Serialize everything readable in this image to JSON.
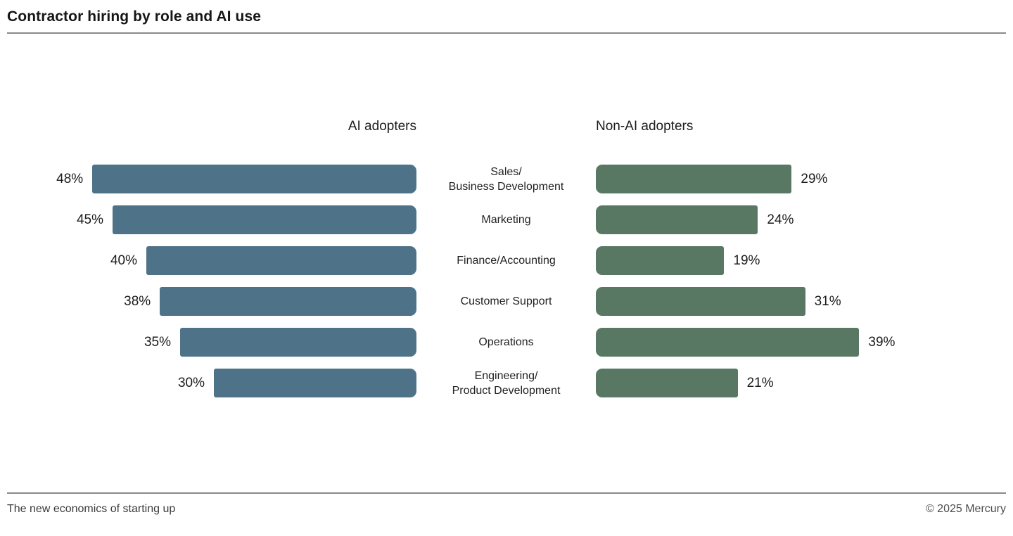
{
  "page": {
    "title": "Contractor hiring by role and AI use",
    "footer": {
      "caption": "The new economics of starting up",
      "copyright": "© 2025 Mercury"
    }
  },
  "chart_data": {
    "type": "bar",
    "variant": "diverging-horizontal",
    "title": "Contractor hiring by role and AI use",
    "unit": "%",
    "categories": [
      "Sales/\nBusiness Development",
      "Marketing",
      "Finance/Accounting",
      "Customer Support",
      "Operations",
      "Engineering/\nProduct Development"
    ],
    "series": [
      {
        "name": "AI adopters",
        "color": "#4e7389",
        "values": [
          48,
          45,
          40,
          38,
          35,
          30
        ]
      },
      {
        "name": "Non-AI adopters",
        "color": "#587863",
        "values": [
          29,
          24,
          19,
          31,
          39,
          21
        ]
      }
    ],
    "value_labels": "outside-end",
    "axis_range": [
      0,
      50
    ],
    "grid": false,
    "legend_position": "column-headers"
  }
}
